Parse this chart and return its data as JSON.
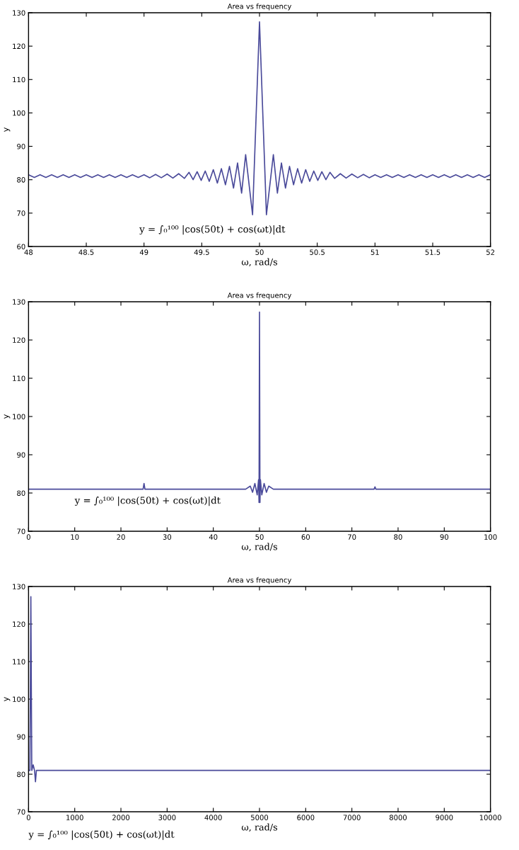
{
  "chart_data": [
    {
      "type": "line",
      "title": "Area vs frequency",
      "xlabel": "ω, rad/s",
      "ylabel": "y",
      "annotations": [
        "y = ∫₀¹⁰⁰ |cos(50t) + cos(ωt)|dt"
      ],
      "series": [
        {
          "color": "#4a4a9a",
          "x": [
            48.0,
            48.05,
            48.1,
            48.15,
            48.2,
            48.25,
            48.3,
            48.35,
            48.4,
            48.45,
            48.5,
            48.55,
            48.6,
            48.65,
            48.7,
            48.75,
            48.8,
            48.85,
            48.9,
            48.95,
            49.0,
            49.05,
            49.1,
            49.15,
            49.2,
            49.25,
            49.3,
            49.35,
            49.39,
            49.425,
            49.46,
            49.495,
            49.53,
            49.565,
            49.6,
            49.635,
            49.67,
            49.705,
            49.74,
            49.775,
            49.81,
            49.845,
            49.88,
            49.94,
            50,
            50.06,
            50.12,
            50.155,
            50.19,
            50.225,
            50.26,
            50.295,
            50.33,
            50.365,
            50.4,
            50.435,
            50.47,
            50.505,
            50.54,
            50.575,
            50.61,
            50.65,
            50.7,
            50.75,
            50.8,
            50.85,
            50.9,
            50.95,
            51.0,
            51.05,
            51.1,
            51.15,
            51.2,
            51.25,
            51.3,
            51.35,
            51.4,
            51.45,
            51.5,
            51.55,
            51.6,
            51.65,
            51.7,
            51.75,
            51.8,
            51.85,
            51.9,
            51.95,
            52.0
          ],
          "values": [
            81.5,
            80.7,
            81.5,
            80.7,
            81.5,
            80.7,
            81.5,
            80.7,
            81.5,
            80.7,
            81.5,
            80.7,
            81.5,
            80.7,
            81.5,
            80.7,
            81.5,
            80.7,
            81.5,
            80.7,
            81.5,
            80.6,
            81.6,
            80.6,
            81.7,
            80.5,
            81.8,
            80.4,
            82.2,
            80,
            82.4,
            79.8,
            82.6,
            79.5,
            83,
            79,
            83.3,
            78.5,
            84,
            77.5,
            85,
            76,
            87.5,
            69.5,
            127.3,
            69.5,
            87.5,
            76,
            85,
            77.5,
            84,
            78.5,
            83.3,
            79,
            83,
            79.5,
            82.6,
            79.8,
            82.4,
            80,
            82.2,
            80.4,
            81.8,
            80.5,
            81.7,
            80.6,
            81.6,
            80.6,
            81.5,
            80.7,
            81.5,
            80.7,
            81.5,
            80.7,
            81.5,
            80.7,
            81.5,
            80.7,
            81.5,
            80.7,
            81.5,
            80.7,
            81.5,
            80.7,
            81.5,
            80.7,
            81.5,
            80.7,
            81.5
          ]
        }
      ],
      "xlim": [
        48,
        52
      ],
      "xticks": [
        48,
        48.5,
        49,
        49.5,
        50,
        50.5,
        51,
        51.5,
        52
      ],
      "ylim": [
        60,
        130
      ],
      "yticks": [
        60,
        70,
        80,
        90,
        100,
        110,
        120,
        130
      ]
    },
    {
      "type": "line",
      "title": "Area vs frequency",
      "xlabel": "ω, rad/s",
      "ylabel": "y",
      "annotations": [
        "y = ∫₀¹⁰⁰ |cos(50t) + cos(ωt)|dt"
      ],
      "series": [
        {
          "color": "#4a4a9a",
          "x": [
            0,
            24.8,
            25,
            25.2,
            47,
            48,
            48.5,
            49,
            49.5,
            49.8,
            49.9,
            49.95,
            50,
            50.1,
            50.2,
            50.5,
            51,
            51.5,
            52,
            53,
            74.8,
            75,
            75.2,
            100
          ],
          "values": [
            81,
            81,
            82.5,
            81,
            81,
            81.8,
            80.2,
            82.5,
            79.5,
            83.5,
            77.5,
            102,
            127.3,
            77.5,
            83.5,
            79.5,
            82.5,
            80.2,
            81.8,
            81,
            81,
            81.6,
            81,
            81
          ]
        }
      ],
      "xlim": [
        0,
        100
      ],
      "xticks": [
        0,
        10,
        20,
        30,
        40,
        50,
        60,
        70,
        80,
        90,
        100
      ],
      "ylim": [
        70,
        130
      ],
      "yticks": [
        70,
        80,
        90,
        100,
        110,
        120,
        130
      ]
    },
    {
      "type": "line",
      "title": "Area vs frequency",
      "xlabel": "ω, rad/s",
      "ylabel": "y",
      "annotations": [
        "y = ∫₀¹⁰⁰ |cos(50t) + cos(ωt)|dt"
      ],
      "series": [
        {
          "color": "#4a4a9a",
          "x": [
            0,
            30,
            50,
            70,
            100,
            130,
            150,
            170,
            10000
          ],
          "values": [
            81,
            81,
            127.3,
            81,
            82.5,
            81,
            78,
            81,
            81
          ]
        }
      ],
      "xlim": [
        0,
        10000
      ],
      "xticks": [
        0,
        1000,
        2000,
        3000,
        4000,
        5000,
        6000,
        7000,
        8000,
        9000,
        10000
      ],
      "ylim": [
        70,
        130
      ],
      "yticks": [
        70,
        80,
        90,
        100,
        110,
        120,
        130
      ]
    }
  ]
}
